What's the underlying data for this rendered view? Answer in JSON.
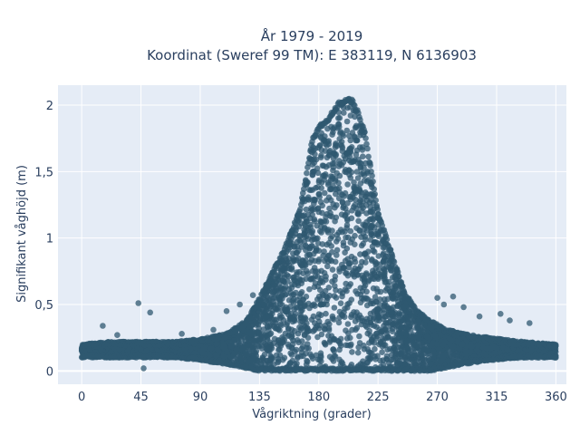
{
  "chart_data": {
    "type": "scatter",
    "title_line1": "År 1979 - 2019",
    "title_line2": "Koordinat (Sweref 99 TM): E 383119, N 6136903",
    "xlabel": "Vågriktning (grader)",
    "ylabel": "Signifikant våghöjd (m)",
    "xlim": [
      -18,
      368
    ],
    "ylim": [
      -0.1,
      2.15
    ],
    "x_ticks": [
      0,
      45,
      90,
      135,
      180,
      225,
      270,
      315,
      360
    ],
    "x_tick_labels": [
      "0",
      "45",
      "90",
      "135",
      "180",
      "225",
      "270",
      "315",
      "360"
    ],
    "y_ticks": [
      0,
      0.5,
      1,
      1.5,
      2
    ],
    "y_tick_labels": [
      "0",
      "0,5",
      "1",
      "1,5",
      "2"
    ],
    "grid": true,
    "envelope": {
      "description_x": [
        0,
        20,
        45,
        70,
        90,
        110,
        125,
        135,
        145,
        155,
        165,
        170,
        175,
        180,
        185,
        190,
        195,
        200,
        205,
        210,
        215,
        220,
        225,
        235,
        245,
        255,
        265,
        275,
        290,
        310,
        335,
        360
      ],
      "upper_y": [
        0.2,
        0.22,
        0.22,
        0.22,
        0.24,
        0.28,
        0.38,
        0.55,
        0.75,
        0.95,
        1.2,
        1.45,
        1.75,
        1.85,
        1.88,
        1.95,
        2.02,
        2.05,
        2.05,
        1.95,
        1.8,
        1.5,
        1.2,
        0.9,
        0.6,
        0.45,
        0.38,
        0.32,
        0.28,
        0.25,
        0.22,
        0.2
      ],
      "lower_y": [
        0.1,
        0.1,
        0.1,
        0.1,
        0.08,
        0.05,
        0.02,
        0,
        0,
        0,
        0,
        0,
        0,
        0,
        0,
        0,
        0,
        0,
        0,
        0,
        0,
        0,
        0,
        0,
        0,
        0,
        0,
        0.02,
        0.05,
        0.08,
        0.1,
        0.1
      ]
    },
    "outliers": [
      {
        "x": 43,
        "y": 0.51
      },
      {
        "x": 52,
        "y": 0.44
      },
      {
        "x": 16,
        "y": 0.34
      },
      {
        "x": 120,
        "y": 0.5
      },
      {
        "x": 130,
        "y": 0.57
      },
      {
        "x": 132,
        "y": 0.41
      },
      {
        "x": 270,
        "y": 0.55
      },
      {
        "x": 275,
        "y": 0.5
      },
      {
        "x": 282,
        "y": 0.56
      },
      {
        "x": 290,
        "y": 0.48
      },
      {
        "x": 302,
        "y": 0.41
      },
      {
        "x": 318,
        "y": 0.43
      },
      {
        "x": 325,
        "y": 0.38
      },
      {
        "x": 340,
        "y": 0.36
      },
      {
        "x": 27,
        "y": 0.27
      },
      {
        "x": 76,
        "y": 0.28
      },
      {
        "x": 100,
        "y": 0.31
      },
      {
        "x": 117,
        "y": 0.3
      },
      {
        "x": 47,
        "y": 0.02
      },
      {
        "x": 110,
        "y": 0.45
      }
    ],
    "marker_color": "#2f5870",
    "plot_bg": "#e5ecf6",
    "grid_color": "#ffffff",
    "text_color": "#2a3f5f"
  }
}
